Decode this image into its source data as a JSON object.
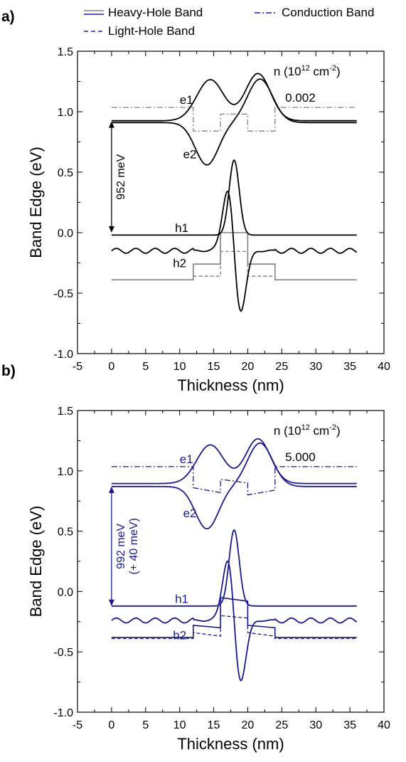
{
  "legend": {
    "heavy_hole": "Heavy-Hole Band",
    "conduction": "Conduction Band",
    "light_hole": "Light-Hole Band"
  },
  "colors": {
    "panel_a_wavefunction": "#000000",
    "panel_a_band": "#808080",
    "panel_b": "#1a1a8c",
    "legend_solid": "#808080",
    "legend_dash": "#1a1acc"
  },
  "chart_data": [
    {
      "type": "line",
      "panel_label": "a)",
      "xlabel": "Thickness (nm)",
      "ylabel": "Band Edge (eV)",
      "xlim": [
        -5,
        40
      ],
      "ylim": [
        -1.0,
        1.5
      ],
      "xticks": [
        -5,
        0,
        5,
        10,
        15,
        20,
        25,
        30,
        35,
        40
      ],
      "yticks": [
        -1.0,
        -0.5,
        0.0,
        0.5,
        1.0,
        1.5
      ],
      "xtick_labels": [
        "-5",
        "0",
        "5",
        "10",
        "15",
        "20",
        "25",
        "30",
        "35",
        "40"
      ],
      "ytick_labels": [
        "-1.0",
        "-0.5",
        "0.0",
        "0.5",
        "1.0",
        "1.5"
      ],
      "density_label": "n (10",
      "density_exp": "12",
      "density_unit": " cm",
      "density_unit_exp": "-2",
      "density_label_suffix": ")",
      "density_value": "0.002",
      "gap_label": "952 meV",
      "gap_label_2": "",
      "gap_arrow": [
        0.0,
        0.92
      ],
      "curve_labels": [
        {
          "text": "e1",
          "x": 11.0,
          "y": 1.1
        },
        {
          "text": "e2",
          "x": 11.5,
          "y": 0.65
        },
        {
          "text": "h1",
          "x": 10.3,
          "y": 0.04
        },
        {
          "text": "h2",
          "x": 10.0,
          "y": -0.25
        }
      ],
      "bands": {
        "conduction": {
          "x": [
            0,
            12,
            12,
            16,
            16,
            20,
            20,
            24,
            24,
            36
          ],
          "y": [
            1.035,
            1.035,
            0.84,
            0.84,
            0.98,
            0.98,
            0.84,
            0.84,
            1.035,
            1.035
          ]
        },
        "heavy_hole": {
          "x": [
            0,
            12,
            12,
            16,
            16,
            20,
            20,
            24,
            24,
            36
          ],
          "y": [
            -0.39,
            -0.39,
            -0.26,
            -0.26,
            0.0,
            0.0,
            -0.26,
            -0.26,
            -0.39,
            -0.39
          ]
        },
        "light_hole": {
          "x": [
            0,
            12,
            12,
            16,
            16,
            20,
            20,
            24,
            24,
            36
          ],
          "y": [
            -0.39,
            -0.39,
            -0.36,
            -0.36,
            -0.155,
            -0.155,
            -0.36,
            -0.36,
            -0.39,
            -0.39
          ]
        }
      },
      "wavefunctions": [
        {
          "name": "e1",
          "baseline": 0.925,
          "components": [
            {
              "amp": 0.34,
              "center": 14.5,
              "width": 2.8,
              "order": 0
            },
            {
              "amp": 0.39,
              "center": 21.5,
              "width": 2.6,
              "order": 0
            }
          ],
          "ripple": 0
        },
        {
          "name": "e2",
          "baseline": 0.91,
          "components": [
            {
              "amp": -0.35,
              "center": 14.0,
              "width": 2.4,
              "order": 0
            },
            {
              "amp": 0.36,
              "center": 21.8,
              "width": 2.6,
              "order": 0
            }
          ],
          "ripple": 0
        },
        {
          "name": "h1",
          "baseline": -0.02,
          "components": [
            {
              "amp": 0.62,
              "center": 18.0,
              "width": 1.05,
              "order": 0
            }
          ],
          "ripple": 0
        },
        {
          "name": "h2",
          "baseline": -0.15,
          "components": [
            {
              "amp": 1.15,
              "center": 18.0,
              "width": 1.4,
              "order": 1
            }
          ],
          "ripple": 0.02
        }
      ]
    },
    {
      "type": "line",
      "panel_label": "b)",
      "xlabel": "Thickness (nm)",
      "ylabel": "Band Edge (eV)",
      "xlim": [
        -5,
        40
      ],
      "ylim": [
        -1.0,
        1.5
      ],
      "xticks": [
        -5,
        0,
        5,
        10,
        15,
        20,
        25,
        30,
        35,
        40
      ],
      "yticks": [
        -1.0,
        -0.5,
        0.0,
        0.5,
        1.0,
        1.5
      ],
      "xtick_labels": [
        "-5",
        "0",
        "5",
        "10",
        "15",
        "20",
        "25",
        "30",
        "35",
        "40"
      ],
      "ytick_labels": [
        "-1.0",
        "-0.5",
        "0.0",
        "0.5",
        "1.0",
        "1.5"
      ],
      "density_label": "n (10",
      "density_exp": "12",
      "density_unit": " cm",
      "density_unit_exp": "-2",
      "density_label_suffix": ")",
      "density_value": "5.000",
      "gap_label": "992 meV",
      "gap_label_2": "(+ 40 meV)",
      "gap_arrow": [
        -0.12,
        0.87
      ],
      "curve_labels": [
        {
          "text": "e1",
          "x": 11.0,
          "y": 1.1
        },
        {
          "text": "e2",
          "x": 11.5,
          "y": 0.65
        },
        {
          "text": "h1",
          "x": 10.3,
          "y": -0.06
        },
        {
          "text": "h2",
          "x": 10.0,
          "y": -0.36
        }
      ],
      "bands": {
        "conduction": {
          "x": [
            0,
            12,
            12,
            16,
            16,
            20,
            20,
            24,
            24,
            36
          ],
          "y": [
            1.035,
            1.035,
            0.86,
            0.82,
            0.93,
            0.9,
            0.8,
            0.84,
            1.035,
            1.035
          ]
        },
        "heavy_hole": {
          "x": [
            0,
            12,
            12,
            16,
            16,
            20,
            20,
            24,
            24,
            36
          ],
          "y": [
            -0.38,
            -0.38,
            -0.28,
            -0.3,
            -0.05,
            -0.08,
            -0.28,
            -0.3,
            -0.38,
            -0.38
          ]
        },
        "light_hole": {
          "x": [
            0,
            12,
            12,
            16,
            16,
            20,
            20,
            24,
            24,
            36
          ],
          "y": [
            -0.39,
            -0.39,
            -0.34,
            -0.37,
            -0.2,
            -0.22,
            -0.34,
            -0.37,
            -0.39,
            -0.39
          ]
        }
      },
      "wavefunctions": [
        {
          "name": "e1",
          "baseline": 0.895,
          "components": [
            {
              "amp": 0.32,
              "center": 14.5,
              "width": 2.8,
              "order": 0
            },
            {
              "amp": 0.37,
              "center": 21.5,
              "width": 2.6,
              "order": 0
            }
          ],
          "ripple": 0
        },
        {
          "name": "e2",
          "baseline": 0.87,
          "components": [
            {
              "amp": -0.35,
              "center": 14.0,
              "width": 2.4,
              "order": 0
            },
            {
              "amp": 0.36,
              "center": 21.8,
              "width": 2.6,
              "order": 0
            }
          ],
          "ripple": 0
        },
        {
          "name": "h1",
          "baseline": -0.12,
          "components": [
            {
              "amp": 0.63,
              "center": 18.0,
              "width": 1.05,
              "order": 0
            }
          ],
          "ripple": 0
        },
        {
          "name": "h2",
          "baseline": -0.24,
          "components": [
            {
              "amp": 1.15,
              "center": 18.0,
              "width": 1.4,
              "order": 1
            }
          ],
          "ripple": 0.02
        }
      ]
    }
  ]
}
